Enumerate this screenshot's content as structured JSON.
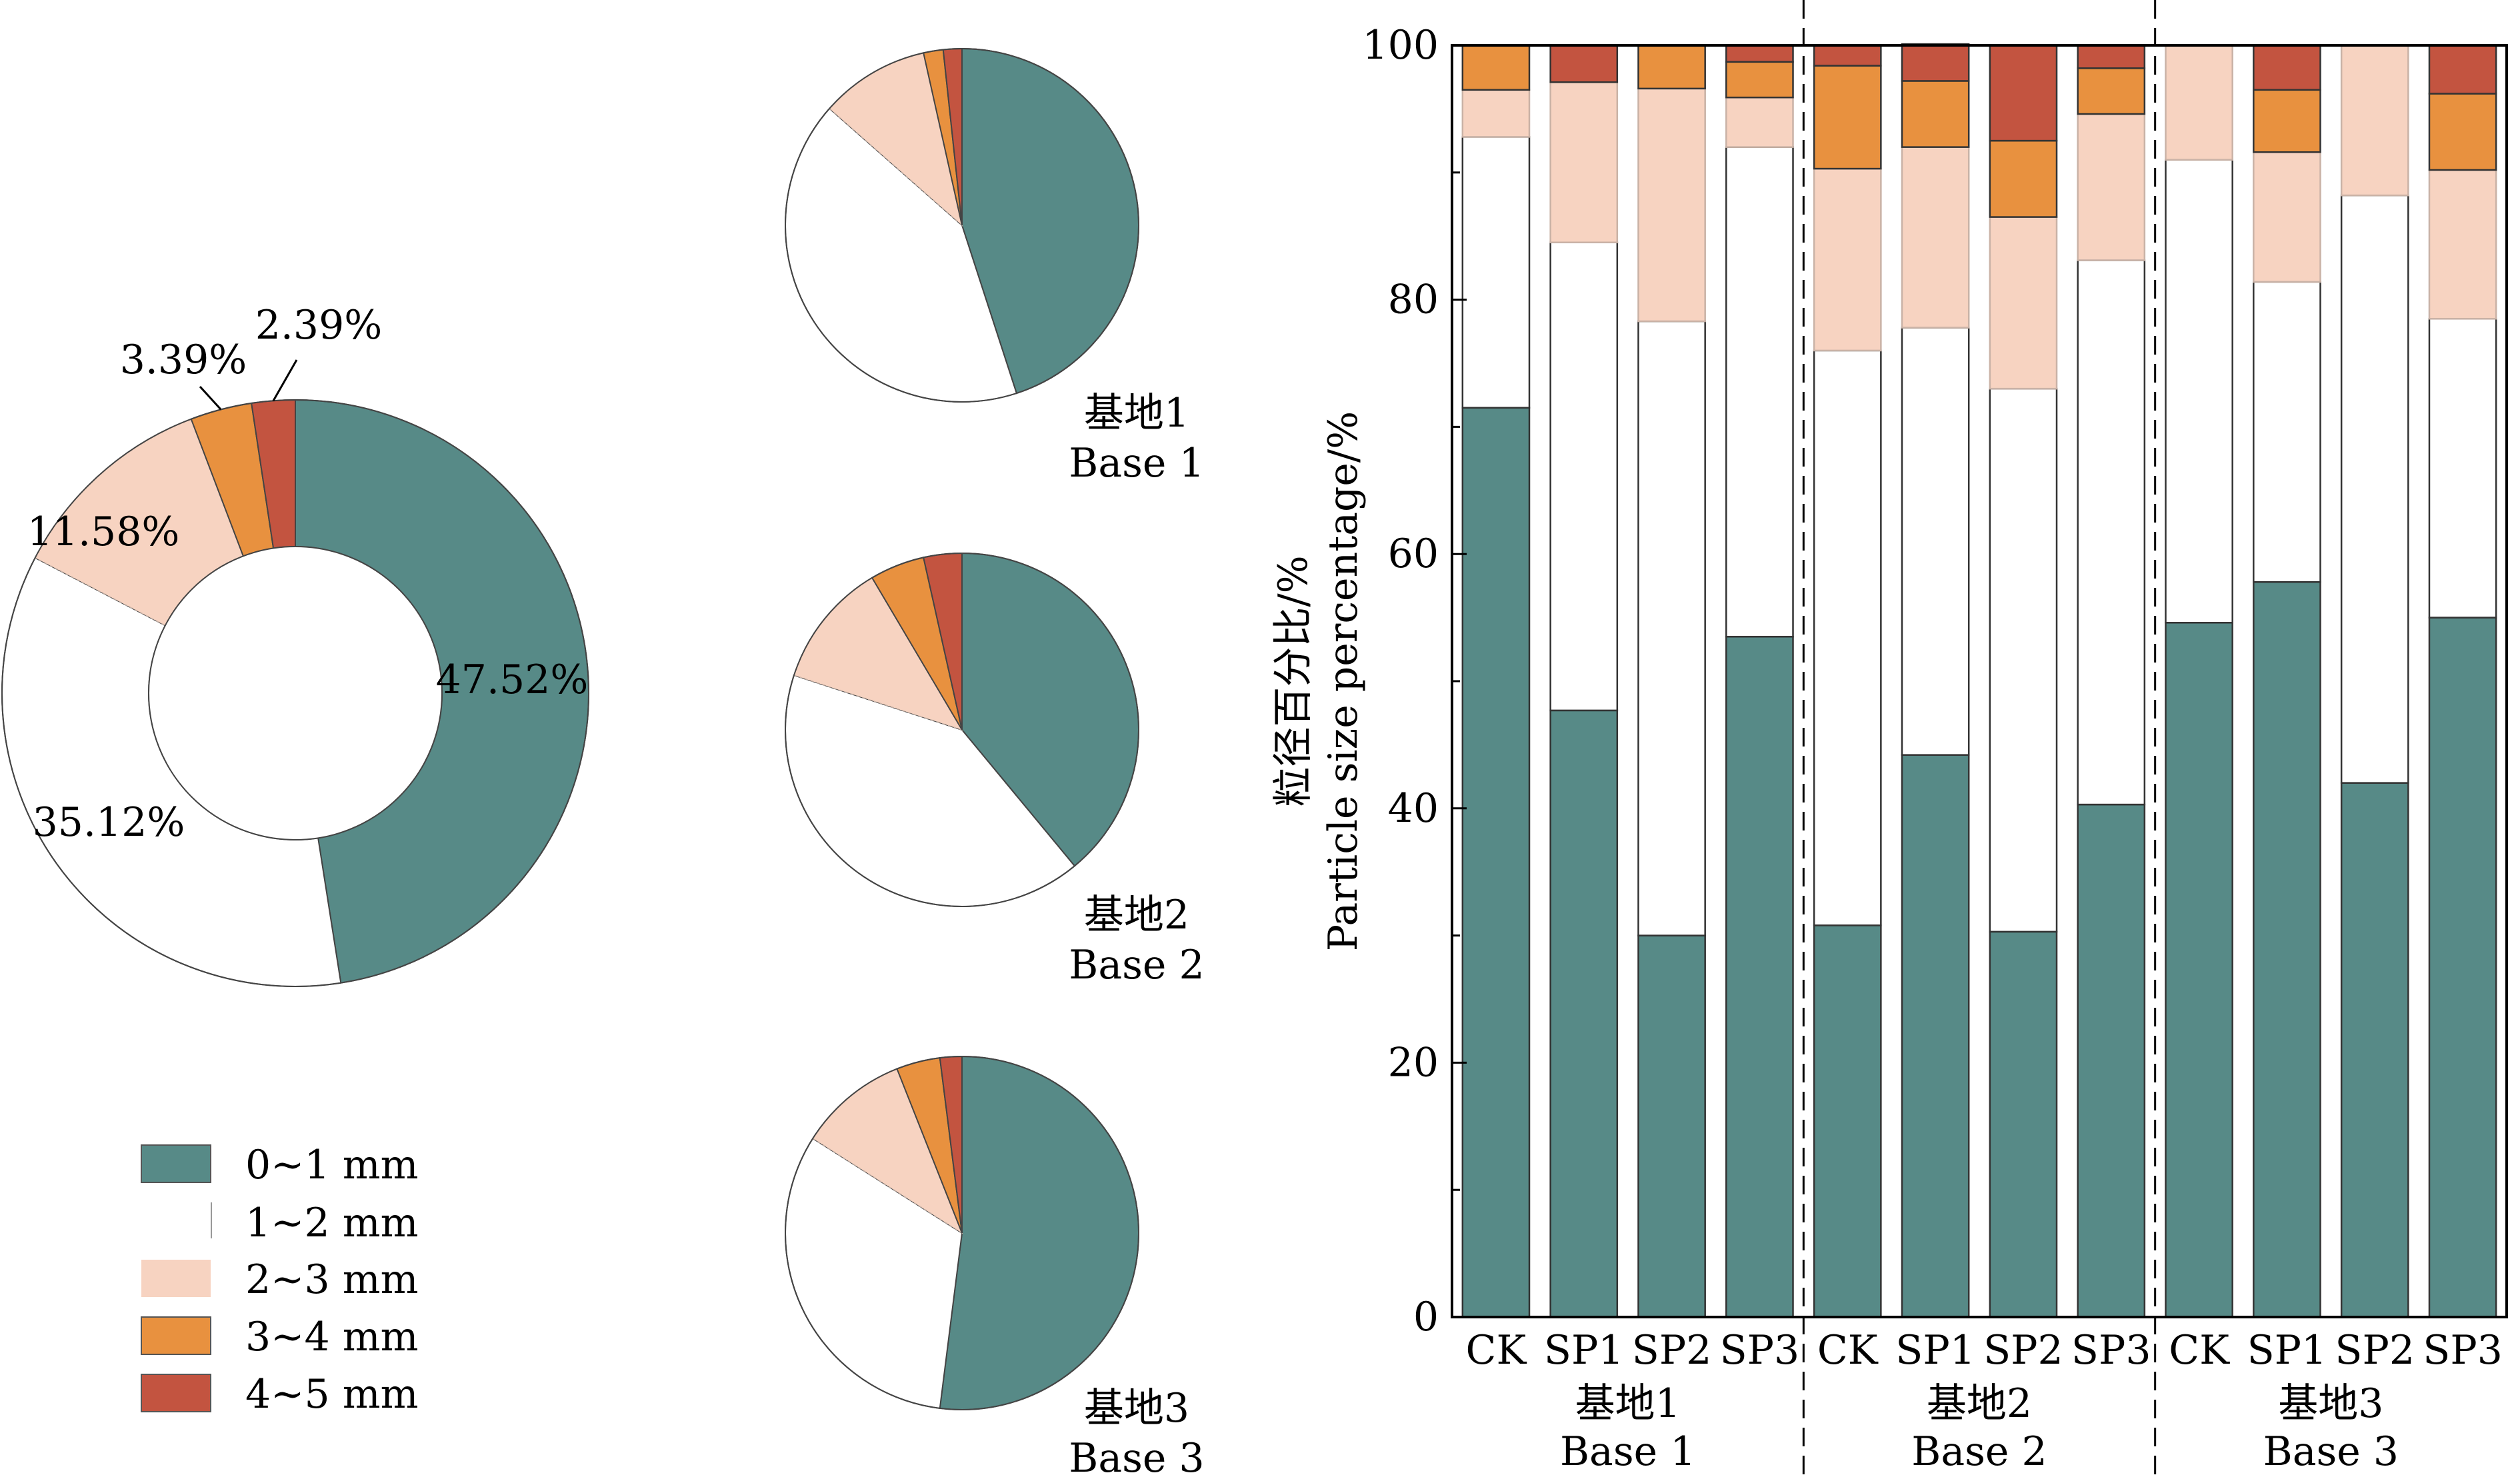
{
  "chart_data": [
    {
      "type": "pie",
      "variant": "donut",
      "categories": [
        "0~1 mm",
        "1~2 mm",
        "2~3 mm",
        "3~4 mm",
        "4~5 mm"
      ],
      "values": [
        47.52,
        35.12,
        11.58,
        3.39,
        2.39
      ],
      "value_labels": [
        "47.52%",
        "35.12%",
        "11.58%",
        "3.39%",
        "2.39%"
      ]
    },
    {
      "type": "pie",
      "title": "基地1",
      "title_en": "Base 1",
      "categories": [
        "0~1 mm",
        "1~2 mm",
        "2~3 mm",
        "3~4 mm",
        "4~5 mm"
      ],
      "values": [
        45.0,
        41.5,
        10.0,
        1.8,
        1.7
      ]
    },
    {
      "type": "pie",
      "title": "基地2",
      "title_en": "Base 2",
      "categories": [
        "0~1 mm",
        "1~2 mm",
        "2~3 mm",
        "3~4 mm",
        "4~5 mm"
      ],
      "values": [
        39.0,
        41.0,
        11.5,
        5.0,
        3.5
      ]
    },
    {
      "type": "pie",
      "title": "基地3",
      "title_en": "Base 3",
      "categories": [
        "0~1 mm",
        "1~2 mm",
        "2~3 mm",
        "3~4 mm",
        "4~5 mm"
      ],
      "values": [
        52.0,
        32.0,
        10.0,
        4.0,
        2.0
      ]
    },
    {
      "type": "bar",
      "stacked": true,
      "categories": [
        "CK",
        "SP1",
        "SP2",
        "SP3",
        "CK",
        "SP1",
        "SP2",
        "SP3",
        "CK",
        "SP1",
        "SP2",
        "SP3"
      ],
      "groups": [
        {
          "label": "基地1",
          "label_en": "Base 1",
          "count": 4
        },
        {
          "label": "基地2",
          "label_en": "Base 2",
          "count": 4
        },
        {
          "label": "基地3",
          "label_en": "Base 3",
          "count": 4
        }
      ],
      "ylabel": "粒径百分比/%",
      "ylabel_en": "Particle size percentage/%",
      "ylim": [
        0,
        100
      ],
      "yticks": [
        "0",
        "20",
        "40",
        "60",
        "80",
        "100"
      ],
      "series": [
        {
          "name": "0~1 mm",
          "values": [
            71.5,
            47.7,
            30.0,
            53.5,
            30.8,
            44.2,
            30.3,
            40.3,
            54.6,
            57.8,
            42.0,
            55.0
          ]
        },
        {
          "name": "1~2 mm",
          "values": [
            21.3,
            36.8,
            48.3,
            38.5,
            45.2,
            33.6,
            42.7,
            42.8,
            36.4,
            23.6,
            46.2,
            23.5
          ]
        },
        {
          "name": "2~3 mm",
          "values": [
            3.7,
            12.6,
            18.3,
            3.9,
            14.3,
            14.2,
            13.5,
            11.5,
            9.0,
            10.2,
            11.8,
            11.7
          ]
        },
        {
          "name": "3~4 mm",
          "values": [
            3.5,
            0.0,
            3.4,
            2.8,
            8.1,
            5.2,
            6.0,
            3.6,
            0.0,
            4.9,
            0.0,
            6.0
          ]
        },
        {
          "name": "4~5 mm",
          "values": [
            0.0,
            2.9,
            0.0,
            1.3,
            1.6,
            2.9,
            7.5,
            1.8,
            0.0,
            3.5,
            0.0,
            3.8
          ]
        }
      ]
    }
  ],
  "legend": {
    "items": [
      {
        "label": "0~1 mm",
        "color": "#578a87"
      },
      {
        "label": "1~2 mm",
        "color": "#ffffff"
      },
      {
        "label": "2~3 mm",
        "color": "#f7d3c1"
      },
      {
        "label": "3~4 mm",
        "color": "#e8913f"
      },
      {
        "label": "4~5 mm",
        "color": "#c35440"
      }
    ]
  },
  "colors": [
    "#578a87",
    "#ffffff",
    "#f7d3c1",
    "#e8913f",
    "#c35440"
  ]
}
